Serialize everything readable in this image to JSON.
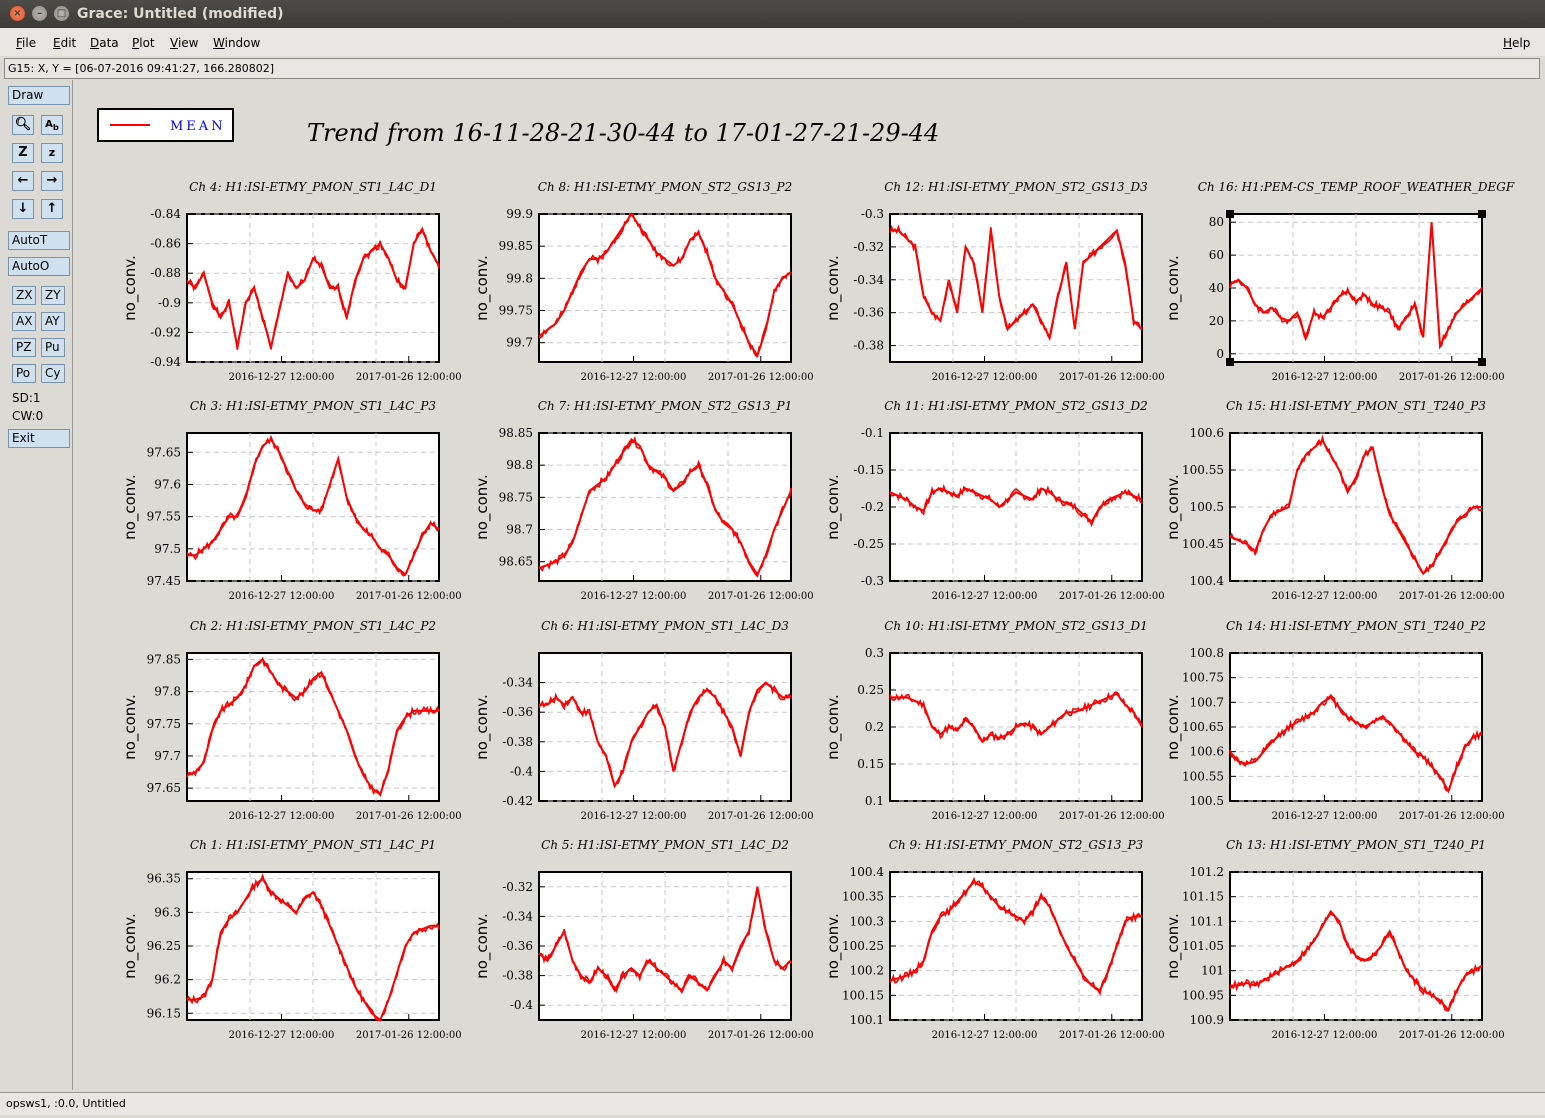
{
  "window": {
    "title": "Grace: Untitled (modified)"
  },
  "menu": {
    "file": "File",
    "edit": "Edit",
    "data": "Data",
    "plot": "Plot",
    "view": "View",
    "window": "Window",
    "help": "Help"
  },
  "locator": "G15: X, Y = [06-07-2016 09:41:27, 166.280802]",
  "tools": {
    "draw": "Draw",
    "autot": "AutoT",
    "autoo": "AutoO",
    "zx": "ZX",
    "zy": "ZY",
    "ax": "AX",
    "ay": "AY",
    "pz": "PZ",
    "pu": "Pu",
    "po": "Po",
    "cy": "Cy",
    "sd": "SD:1",
    "cw": "CW:0",
    "exit": "Exit"
  },
  "status": "opsws1, :0.0, Untitled",
  "colors": {
    "series": "#ff0000",
    "legend_text": "#0000ff"
  },
  "chart_data": {
    "type": "line",
    "title": "Trend from 16-11-28-21-30-44 to 17-01-27-21-29-44",
    "legend": [
      {
        "name": "MEAN",
        "placement": "top-left"
      }
    ],
    "xlabel": "",
    "x_ticks": [
      "2016-12-27 12:00:00",
      "2017-01-26 12:00:00"
    ],
    "panels": [
      {
        "title": "Ch 4: H1:ISI-ETMY_PMON_ST1_L4C_D1",
        "ylabel": "no_conv.",
        "ylim": [
          -0.94,
          -0.84
        ],
        "y_ticks": [
          "-0.84",
          "-0.86",
          "-0.88",
          "-0.9",
          "-0.92",
          "-0.94"
        ],
        "values": [
          -0.885,
          -0.89,
          -0.88,
          -0.9,
          -0.91,
          -0.9,
          -0.93,
          -0.9,
          -0.89,
          -0.91,
          -0.93,
          -0.905,
          -0.88,
          -0.89,
          -0.885,
          -0.87,
          -0.875,
          -0.89,
          -0.89,
          -0.91,
          -0.885,
          -0.87,
          -0.865,
          -0.86,
          -0.87,
          -0.885,
          -0.89,
          -0.86,
          -0.85,
          -0.865,
          -0.875
        ]
      },
      {
        "title": "Ch 8: H1:ISI-ETMY_PMON_ST2_GS13_P2",
        "ylabel": "no_conv.",
        "ylim": [
          99.67,
          99.9
        ],
        "y_ticks": [
          "99.9",
          "99.85",
          "99.8",
          "99.75",
          "99.7"
        ],
        "values": [
          99.71,
          99.72,
          99.73,
          99.75,
          99.78,
          99.81,
          99.83,
          99.83,
          99.84,
          99.86,
          99.88,
          99.9,
          99.88,
          99.86,
          99.84,
          99.83,
          99.82,
          99.83,
          99.86,
          99.87,
          99.84,
          99.8,
          99.78,
          99.76,
          99.73,
          99.7,
          99.68,
          99.72,
          99.78,
          99.8,
          99.81
        ]
      },
      {
        "title": "Ch 12: H1:ISI-ETMY_PMON_ST2_GS13_D3",
        "ylabel": "no_conv.",
        "ylim": [
          -0.39,
          -0.3
        ],
        "y_ticks": [
          "-0.3",
          "-0.32",
          "-0.34",
          "-0.36",
          "-0.38"
        ],
        "values": [
          -0.31,
          -0.31,
          -0.315,
          -0.32,
          -0.35,
          -0.36,
          -0.365,
          -0.34,
          -0.36,
          -0.32,
          -0.33,
          -0.36,
          -0.31,
          -0.35,
          -0.37,
          -0.365,
          -0.36,
          -0.355,
          -0.365,
          -0.375,
          -0.35,
          -0.33,
          -0.37,
          -0.33,
          -0.325,
          -0.32,
          -0.315,
          -0.31,
          -0.33,
          -0.365,
          -0.37
        ]
      },
      {
        "title": "Ch 16: H1:PEM-CS_TEMP_ROOF_WEATHER_DEGF",
        "ylabel": "no_conv.",
        "ylim": [
          -5,
          85
        ],
        "y_ticks": [
          "80",
          "60",
          "40",
          "20",
          "0"
        ],
        "values": [
          42,
          45,
          40,
          30,
          25,
          28,
          22,
          20,
          25,
          10,
          25,
          22,
          28,
          35,
          38,
          32,
          36,
          30,
          28,
          25,
          15,
          22,
          30,
          10,
          80,
          5,
          15,
          25,
          30,
          35,
          40
        ]
      },
      {
        "title": "Ch 3: H1:ISI-ETMY_PMON_ST1_L4C_P3",
        "ylabel": "no_conv.",
        "ylim": [
          97.45,
          97.68
        ],
        "y_ticks": [
          "97.65",
          "97.6",
          "97.55",
          "97.5",
          "97.45"
        ],
        "values": [
          97.49,
          97.49,
          97.5,
          97.51,
          97.53,
          97.55,
          97.55,
          97.58,
          97.63,
          97.66,
          97.67,
          97.65,
          97.62,
          97.59,
          97.57,
          97.56,
          97.56,
          97.6,
          97.64,
          97.58,
          97.55,
          97.53,
          97.52,
          97.5,
          97.49,
          97.47,
          97.46,
          97.49,
          97.52,
          97.54,
          97.53
        ]
      },
      {
        "title": "Ch 7: H1:ISI-ETMY_PMON_ST2_GS13_P1",
        "ylabel": "no_conv.",
        "ylim": [
          98.62,
          98.85
        ],
        "y_ticks": [
          "98.85",
          "98.8",
          "98.75",
          "98.7",
          "98.65"
        ],
        "values": [
          98.64,
          98.645,
          98.65,
          98.66,
          98.68,
          98.72,
          98.76,
          98.77,
          98.78,
          98.8,
          98.82,
          98.84,
          98.83,
          98.8,
          98.79,
          98.78,
          98.76,
          98.77,
          98.79,
          98.8,
          98.77,
          98.73,
          98.71,
          98.7,
          98.68,
          98.65,
          98.63,
          98.66,
          98.7,
          98.73,
          98.76
        ]
      },
      {
        "title": "Ch 11: H1:ISI-ETMY_PMON_ST2_GS13_D2",
        "ylabel": "no_conv.",
        "ylim": [
          -0.3,
          -0.1
        ],
        "y_ticks": [
          "-0.1",
          "-0.15",
          "-0.2",
          "-0.25",
          "-0.3"
        ],
        "values": [
          -0.18,
          -0.185,
          -0.19,
          -0.2,
          -0.205,
          -0.18,
          -0.175,
          -0.18,
          -0.185,
          -0.175,
          -0.18,
          -0.185,
          -0.19,
          -0.2,
          -0.19,
          -0.18,
          -0.185,
          -0.19,
          -0.175,
          -0.18,
          -0.19,
          -0.195,
          -0.2,
          -0.21,
          -0.22,
          -0.2,
          -0.19,
          -0.185,
          -0.18,
          -0.185,
          -0.19
        ]
      },
      {
        "title": "Ch 15: H1:ISI-ETMY_PMON_ST1_T240_P3",
        "ylabel": "no_conv.",
        "ylim": [
          100.4,
          100.6
        ],
        "y_ticks": [
          "100.6",
          "100.55",
          "100.5",
          "100.45",
          "100.4"
        ],
        "values": [
          100.46,
          100.455,
          100.45,
          100.44,
          100.47,
          100.49,
          100.495,
          100.5,
          100.55,
          100.57,
          100.58,
          100.59,
          100.57,
          100.55,
          100.52,
          100.54,
          100.57,
          100.58,
          100.53,
          100.49,
          100.47,
          100.45,
          100.43,
          100.41,
          100.42,
          100.44,
          100.46,
          100.48,
          100.49,
          100.5,
          100.5
        ]
      },
      {
        "title": "Ch 2: H1:ISI-ETMY_PMON_ST1_L4C_P2",
        "ylabel": "no_conv.",
        "ylim": [
          97.63,
          97.86
        ],
        "y_ticks": [
          "97.85",
          "97.8",
          "97.75",
          "97.7",
          "97.65"
        ],
        "values": [
          97.67,
          97.675,
          97.69,
          97.74,
          97.77,
          97.78,
          97.79,
          97.81,
          97.84,
          97.85,
          97.83,
          97.81,
          97.8,
          97.79,
          97.8,
          97.82,
          97.83,
          97.8,
          97.77,
          97.74,
          97.7,
          97.67,
          97.65,
          97.64,
          97.68,
          97.74,
          97.76,
          97.77,
          97.77,
          97.77,
          97.77
        ]
      },
      {
        "title": "Ch 6: H1:ISI-ETMY_PMON_ST1_L4C_D3",
        "ylabel": "no_conv.",
        "ylim": [
          -0.42,
          -0.32
        ],
        "y_ticks": [
          "-0.34",
          "-0.36",
          "-0.38",
          "-0.4",
          "-0.42"
        ],
        "values": [
          -0.355,
          -0.355,
          -0.35,
          -0.355,
          -0.35,
          -0.36,
          -0.36,
          -0.38,
          -0.39,
          -0.41,
          -0.4,
          -0.38,
          -0.37,
          -0.36,
          -0.355,
          -0.37,
          -0.4,
          -0.38,
          -0.36,
          -0.35,
          -0.345,
          -0.35,
          -0.36,
          -0.37,
          -0.39,
          -0.36,
          -0.345,
          -0.34,
          -0.345,
          -0.35,
          -0.35
        ]
      },
      {
        "title": "Ch 10: H1:ISI-ETMY_PMON_ST2_GS13_D1",
        "ylabel": "no_conv.",
        "ylim": [
          0.1,
          0.3
        ],
        "y_ticks": [
          "0.3",
          "0.25",
          "0.2",
          "0.15",
          "0.1"
        ],
        "values": [
          0.24,
          0.24,
          0.24,
          0.235,
          0.23,
          0.2,
          0.19,
          0.2,
          0.195,
          0.21,
          0.2,
          0.18,
          0.19,
          0.185,
          0.19,
          0.2,
          0.205,
          0.2,
          0.19,
          0.2,
          0.21,
          0.22,
          0.22,
          0.225,
          0.23,
          0.235,
          0.24,
          0.245,
          0.23,
          0.22,
          0.2
        ]
      },
      {
        "title": "Ch 14: H1:ISI-ETMY_PMON_ST1_T240_P2",
        "ylabel": "no_conv.",
        "ylim": [
          100.5,
          100.8
        ],
        "y_ticks": [
          "100.8",
          "100.75",
          "100.7",
          "100.65",
          "100.6",
          "100.55",
          "100.5"
        ],
        "values": [
          100.6,
          100.58,
          100.575,
          100.58,
          100.6,
          100.62,
          100.635,
          100.65,
          100.66,
          100.67,
          100.68,
          100.7,
          100.71,
          100.69,
          100.67,
          100.66,
          100.65,
          100.66,
          100.67,
          100.66,
          100.64,
          100.62,
          100.6,
          100.59,
          100.57,
          100.55,
          100.52,
          100.57,
          100.61,
          100.63,
          100.635
        ]
      },
      {
        "title": "Ch 1: H1:ISI-ETMY_PMON_ST1_L4C_P1",
        "ylabel": "no_conv.",
        "ylim": [
          96.14,
          96.36
        ],
        "y_ticks": [
          "96.35",
          "96.3",
          "96.25",
          "96.2",
          "96.15"
        ],
        "values": [
          96.17,
          96.17,
          96.175,
          96.2,
          96.27,
          96.29,
          96.3,
          96.32,
          96.34,
          96.35,
          96.33,
          96.32,
          96.31,
          96.3,
          96.32,
          96.33,
          96.31,
          96.28,
          96.25,
          96.22,
          96.19,
          96.17,
          96.15,
          96.14,
          96.17,
          96.21,
          96.25,
          96.27,
          96.275,
          96.28,
          96.28
        ]
      },
      {
        "title": "Ch 5: H1:ISI-ETMY_PMON_ST1_L4C_D2",
        "ylabel": "no_conv.",
        "ylim": [
          -0.41,
          -0.31
        ],
        "y_ticks": [
          "-0.32",
          "-0.34",
          "-0.36",
          "-0.38",
          "-0.4"
        ],
        "values": [
          -0.365,
          -0.37,
          -0.36,
          -0.35,
          -0.37,
          -0.38,
          -0.385,
          -0.375,
          -0.38,
          -0.39,
          -0.38,
          -0.375,
          -0.38,
          -0.37,
          -0.375,
          -0.38,
          -0.385,
          -0.39,
          -0.38,
          -0.385,
          -0.39,
          -0.38,
          -0.37,
          -0.375,
          -0.36,
          -0.35,
          -0.32,
          -0.35,
          -0.37,
          -0.375,
          -0.37
        ]
      },
      {
        "title": "Ch 9: H1:ISI-ETMY_PMON_ST2_GS13_P3",
        "ylabel": "no_conv.",
        "ylim": [
          100.1,
          100.4
        ],
        "y_ticks": [
          "100.4",
          "100.35",
          "100.3",
          "100.25",
          "100.2",
          "100.15",
          "100.1"
        ],
        "values": [
          100.18,
          100.185,
          100.19,
          100.2,
          100.22,
          100.28,
          100.31,
          100.32,
          100.34,
          100.36,
          100.38,
          100.37,
          100.35,
          100.33,
          100.32,
          100.31,
          100.3,
          100.32,
          100.35,
          100.33,
          100.29,
          100.25,
          100.22,
          100.19,
          100.17,
          100.16,
          100.2,
          100.25,
          100.3,
          100.31,
          100.31
        ]
      },
      {
        "title": "Ch 13: H1:ISI-ETMY_PMON_ST1_T240_P1",
        "ylabel": "no_conv.",
        "ylim": [
          100.9,
          101.2
        ],
        "y_ticks": [
          "101.2",
          "101.15",
          "101.1",
          "101.05",
          "101",
          "100.95",
          "100.9"
        ],
        "values": [
          100.97,
          100.97,
          100.975,
          100.97,
          100.98,
          100.99,
          101.0,
          101.01,
          101.02,
          101.04,
          101.06,
          101.09,
          101.12,
          101.1,
          101.05,
          101.03,
          101.02,
          101.03,
          101.05,
          101.08,
          101.04,
          101.0,
          100.98,
          100.96,
          100.95,
          100.94,
          100.92,
          100.96,
          100.99,
          101.0,
          101.01
        ]
      }
    ]
  }
}
